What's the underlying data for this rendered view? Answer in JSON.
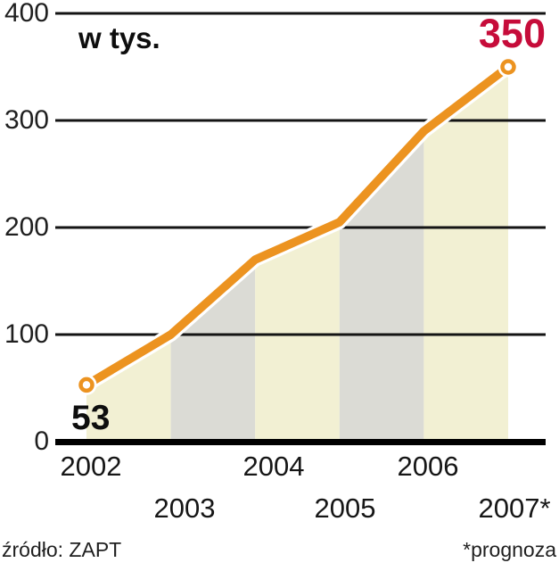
{
  "chart_data": {
    "type": "area",
    "title": "",
    "unit_label": "w tys.",
    "x": [
      2002,
      2003,
      2004,
      2005,
      2006,
      2007
    ],
    "x_labels": [
      "2002",
      "2003",
      "2004",
      "2005",
      "2006",
      "2007*"
    ],
    "values": [
      53,
      100,
      170,
      205,
      290,
      350
    ],
    "y_ticks": [
      "400",
      "300",
      "200",
      "100",
      "0"
    ],
    "ylim": [
      0,
      400
    ],
    "grid": true,
    "legend": "none",
    "annotations": {
      "start_value": "53",
      "end_value": "350"
    },
    "footer": {
      "source": "źródło: ZAPT",
      "note": "*prognoza"
    },
    "colors": {
      "line": "#ec9320",
      "line_casing": "#ffffff",
      "band_cream": "#f2f0d3",
      "band_gray": "#dbdbd5",
      "grid": "#141414",
      "axis": "#000000",
      "end_value_color": "#c60c3a",
      "text": "#1c1c1c"
    }
  }
}
